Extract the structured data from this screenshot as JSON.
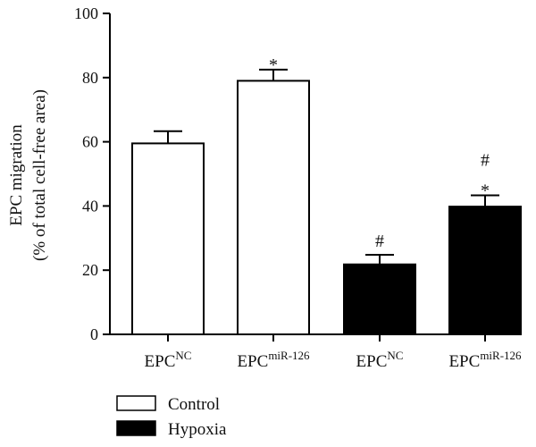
{
  "chart_data": {
    "type": "bar",
    "ylabel_line1": "EPC migration",
    "ylabel_line2": "(% of total cell-free area)",
    "ylim": [
      0,
      100
    ],
    "yticks": [
      0,
      20,
      40,
      60,
      80,
      100
    ],
    "categories": [
      {
        "base": "EPC",
        "sup": "NC"
      },
      {
        "base": "EPC",
        "sup": "miR-126"
      },
      {
        "base": "EPC",
        "sup": "NC"
      },
      {
        "base": "EPC",
        "sup": "miR-126"
      }
    ],
    "bars": [
      {
        "value": 59.5,
        "error": 3.8,
        "group": "Control",
        "annotations": []
      },
      {
        "value": 79.0,
        "error": 3.5,
        "group": "Control",
        "annotations": [
          "*"
        ]
      },
      {
        "value": 21.8,
        "error": 3.0,
        "group": "Hypoxia",
        "annotations": [
          "#"
        ]
      },
      {
        "value": 39.8,
        "error": 3.5,
        "group": "Hypoxia",
        "annotations": [
          "*",
          "#"
        ]
      }
    ],
    "legend": [
      {
        "label": "Control",
        "fill": "#ffffff"
      },
      {
        "label": "Hypoxia",
        "fill": "#000000"
      }
    ],
    "legend_position": "bottom-left",
    "grid": false
  }
}
